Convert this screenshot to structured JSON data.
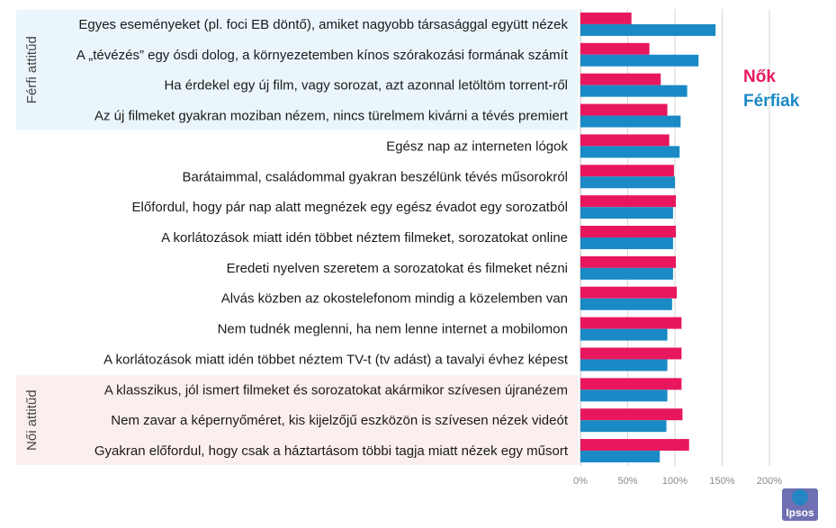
{
  "chart_data": {
    "type": "bar",
    "orientation": "horizontal",
    "categories": [
      "Egyes eseményeket (pl. foci EB döntő), amiket nagyobb társasággal együtt nézek",
      "A „tévézés” egy ósdi dolog, a környezetemben kínos szórakozási formának számít",
      "Ha érdekel egy új film, vagy sorozat, azt azonnal letöltöm torrent-ről",
      "Az új filmeket gyakran moziban nézem, nincs türelmem kivárni a tévés premiert",
      "Egész nap az interneten lógok",
      "Barátaimmal, családommal gyakran beszélünk tévés műsorokról",
      "Előfordul, hogy pár nap alatt megnézek egy egész évadot egy sorozatból",
      "A korlátozások miatt idén többet néztem filmeket, sorozatokat online",
      "Eredeti nyelven szeretem a sorozatokat és filmeket nézni",
      "Alvás közben az okostelefonom mindig a közelemben van",
      "Nem tudnék meglenni, ha nem lenne internet a mobilomon",
      "A korlátozások miatt idén többet néztem TV-t (tv adást) a tavalyi évhez képest",
      "A klasszikus, jól ismert filmeket és sorozatokat akármikor szívesen újranézem",
      "Nem zavar a képernyőméret, kis kijelzőjű eszközön is szívesen nézek videót",
      "Gyakran előfordul, hogy csak a háztartásom többi tagja miatt nézek egy műsort"
    ],
    "series": [
      {
        "name": "Nők",
        "color": "#e8175d",
        "values": [
          54,
          73,
          85,
          92,
          94,
          99,
          101,
          101,
          101,
          102,
          107,
          107,
          107,
          108,
          115
        ]
      },
      {
        "name": "Férfiak",
        "color": "#1a8ac6",
        "values": [
          143,
          125,
          113,
          106,
          105,
          100,
          98,
          98,
          98,
          97,
          92,
          92,
          92,
          91,
          84
        ]
      }
    ],
    "xlim": [
      0,
      200
    ],
    "xticks": [
      0,
      50,
      100,
      150,
      200
    ],
    "tick_suffix": "%",
    "gridlines": true,
    "groups": [
      {
        "label": "Férfi attitűd",
        "start": 0,
        "end": 3,
        "color": "#eaf6fb"
      },
      {
        "label": "Női attitűd",
        "start": 12,
        "end": 14,
        "color": "#fbeeee"
      }
    ],
    "legend": "top-right"
  },
  "logo": {
    "text": "Ipsos"
  }
}
